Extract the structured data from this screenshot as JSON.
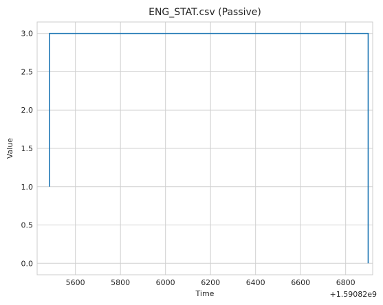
{
  "chart_data": {
    "type": "line",
    "title": "ENG_STAT.csv (Passive)",
    "xlabel": "Time",
    "ylabel": "Value",
    "x_offset_label": "+1.59082e9",
    "xlim": [
      5430,
      6920
    ],
    "ylim": [
      -0.15,
      3.15
    ],
    "x_ticks": [
      5600,
      5800,
      6000,
      6200,
      6400,
      6600,
      6800
    ],
    "y_ticks": [
      0.0,
      0.5,
      1.0,
      1.5,
      2.0,
      2.5,
      3.0
    ],
    "y_tick_labels": [
      "0.0",
      "0.5",
      "1.0",
      "1.5",
      "2.0",
      "2.5",
      "3.0"
    ],
    "grid": true,
    "series": [
      {
        "color": "#1f77b4",
        "x": [
          5485,
          5485,
          6900,
          6900
        ],
        "y": [
          1.0,
          3.0,
          3.0,
          0.0
        ]
      }
    ]
  }
}
